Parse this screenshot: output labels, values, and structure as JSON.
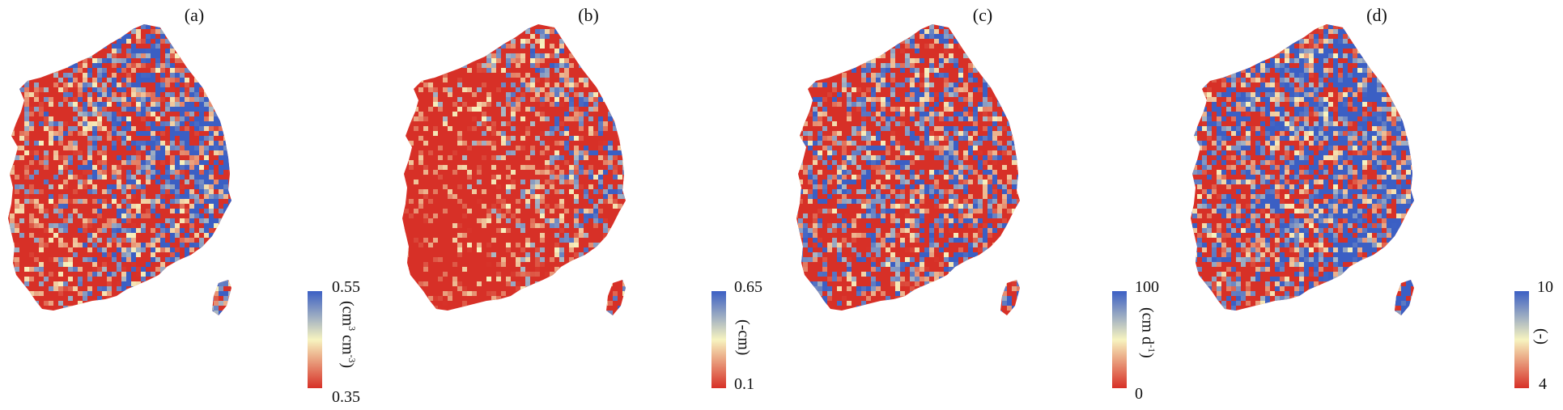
{
  "panels": [
    {
      "label": "(a)",
      "unit_main": "(cm",
      "unit_sup1": "3",
      "unit_mid": " cm",
      "unit_sup2": "-3",
      "unit_end": ")",
      "max": "0.55",
      "min": "0.35",
      "blue_fraction": 0.35
    },
    {
      "label": "(b)",
      "unit_main": "(-cm)",
      "unit_sup1": "",
      "unit_mid": "",
      "unit_sup2": "",
      "unit_end": "",
      "max": "0.65",
      "min": "0.1",
      "blue_fraction": 0.15
    },
    {
      "label": "(c)",
      "unit_main": "(cm d",
      "unit_sup1": "-1",
      "unit_mid": "",
      "unit_sup2": "",
      "unit_end": ")",
      "max": "100",
      "min": "0",
      "blue_fraction": 0.45
    },
    {
      "label": "(d)",
      "unit_main": "(-)",
      "unit_sup1": "",
      "unit_mid": "",
      "unit_sup2": "",
      "unit_end": "",
      "max": "10",
      "min": "4",
      "blue_fraction": 0.5
    }
  ],
  "colors": {
    "low": "#d73027",
    "mid": "#f7f4c0",
    "high": "#3b5fc4"
  }
}
